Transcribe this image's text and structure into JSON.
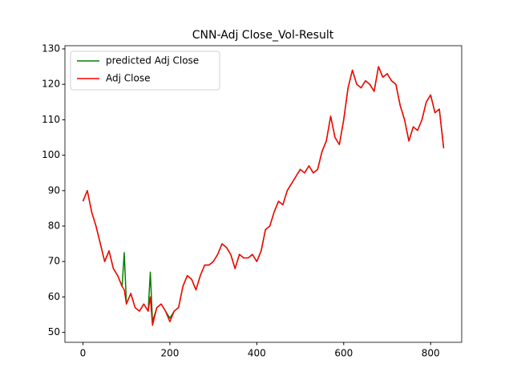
{
  "chart_data": {
    "type": "line",
    "title": "CNN-Adj Close_Vol-Result",
    "x": [
      0,
      10,
      20,
      30,
      40,
      50,
      60,
      70,
      80,
      90,
      95,
      100,
      110,
      120,
      130,
      140,
      150,
      155,
      160,
      170,
      180,
      190,
      200,
      210,
      220,
      230,
      240,
      250,
      260,
      270,
      280,
      290,
      300,
      310,
      320,
      330,
      340,
      350,
      360,
      370,
      380,
      390,
      400,
      410,
      420,
      430,
      440,
      450,
      460,
      470,
      480,
      490,
      500,
      510,
      520,
      530,
      540,
      550,
      560,
      570,
      580,
      590,
      600,
      610,
      620,
      630,
      640,
      650,
      660,
      670,
      680,
      690,
      700,
      710,
      720,
      730,
      740,
      750,
      760,
      770,
      780,
      790,
      800,
      810,
      820,
      830
    ],
    "series": [
      {
        "name": "predicted Adj Close",
        "color": "#008000",
        "values": [
          87,
          90,
          84,
          80,
          75,
          70,
          73,
          68,
          66,
          63,
          72.5,
          58,
          61,
          57,
          56,
          58,
          56,
          67,
          53,
          57,
          58,
          56,
          54,
          56,
          57,
          63,
          66,
          65,
          62,
          66,
          69,
          69,
          70,
          72,
          75,
          74,
          72,
          68,
          72,
          71,
          71,
          72,
          70,
          73,
          79,
          80,
          84,
          87,
          86,
          90,
          92,
          94,
          96,
          95,
          97,
          95,
          96,
          101,
          104,
          111,
          105,
          103,
          110,
          119,
          124,
          120,
          119,
          121,
          120,
          118,
          125,
          122,
          123,
          121,
          120,
          114,
          110,
          104,
          108,
          107,
          110,
          115,
          117,
          112,
          113,
          102
        ]
      },
      {
        "name": "Adj Close",
        "color": "#ff0000",
        "values": [
          87,
          90,
          84,
          80,
          75,
          70,
          73,
          68,
          66,
          63,
          62,
          58,
          61,
          57,
          56,
          58,
          56,
          60,
          52,
          57,
          58,
          56,
          53,
          56,
          57,
          63,
          66,
          65,
          62,
          66,
          69,
          69,
          70,
          72,
          75,
          74,
          72,
          68,
          72,
          71,
          71,
          72,
          70,
          73,
          79,
          80,
          84,
          87,
          86,
          90,
          92,
          94,
          96,
          95,
          97,
          95,
          96,
          101,
          104,
          111,
          105,
          103,
          110,
          119,
          124,
          120,
          119,
          121,
          120,
          118,
          125,
          122,
          123,
          121,
          120,
          114,
          110,
          104,
          108,
          107,
          110,
          115,
          117,
          112,
          113,
          102
        ]
      }
    ],
    "xlim": [
      -41.5,
      871.5
    ],
    "xticks": [
      0,
      200,
      400,
      600,
      800
    ],
    "ylim": [
      47.2,
      130.9
    ],
    "yticks": [
      50,
      60,
      70,
      80,
      90,
      100,
      110,
      120,
      130
    ],
    "legend": "upper left"
  }
}
